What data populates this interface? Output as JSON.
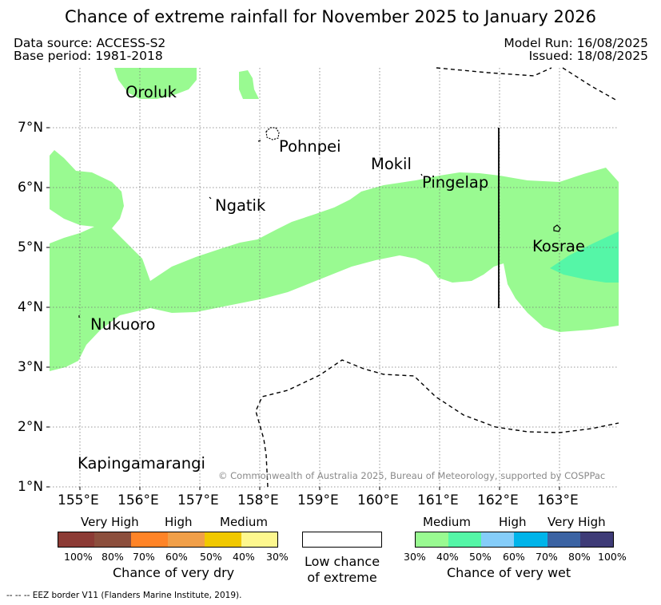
{
  "title": "Chance of extreme rainfall for November 2025 to January 2026",
  "data_source": "Data source: ACCESS-S2",
  "base_period": "Base period: 1981-2018",
  "model_run": "Model Run: 16/08/2025",
  "issued": "Issued: 18/08/2025",
  "map": {
    "lat_labels": [
      "7°N",
      "6°N",
      "5°N",
      "4°N",
      "3°N",
      "2°N",
      "1°N"
    ],
    "lon_labels": [
      "155°E",
      "156°E",
      "157°E",
      "158°E",
      "159°E",
      "160°E",
      "161°E",
      "162°E",
      "163°E"
    ],
    "places": {
      "oroluk": "Oroluk",
      "pohnpei": "Pohnpei",
      "mokil": "Mokil",
      "pingelap": "Pingelap",
      "ngatik": "Ngatik",
      "kosrae": "Kosrae",
      "nukuoro": "Nukuoro",
      "kapingamarangi": "Kapingamarangi"
    },
    "copyright": "© Commonwealth of Australia 2025, Bureau of Meteorology, supported by COSPPac",
    "fill_colors": {
      "wet_30_40": "#99fa91",
      "wet_40_50": "#55f6a7",
      "border": "#000000"
    }
  },
  "legend": {
    "dry": {
      "headers": [
        "Very High",
        "High",
        "Medium"
      ],
      "ticks": [
        "100%",
        "80%",
        "70%",
        "60%",
        "50%",
        "40%",
        "30%"
      ],
      "caption": "Chance of very dry",
      "colors": [
        "#8c3b35",
        "#8c4f3d",
        "#ff8427",
        "#f09f49",
        "#f0c800",
        "#fdf78e"
      ]
    },
    "low": {
      "line1": "Low chance",
      "line2": "of extreme"
    },
    "wet": {
      "headers": [
        "Medium",
        "High",
        "Very High"
      ],
      "ticks": [
        "30%",
        "40%",
        "50%",
        "60%",
        "70%",
        "80%",
        "100%"
      ],
      "caption": "Chance of very wet",
      "colors": [
        "#99fa91",
        "#55f6a7",
        "#85cdf9",
        "#00b4ea",
        "#3b63a3",
        "#3e3b77"
      ]
    }
  },
  "footnote": "--  --  -- EEZ border V11 (Flanders Marine Institute, 2019)."
}
